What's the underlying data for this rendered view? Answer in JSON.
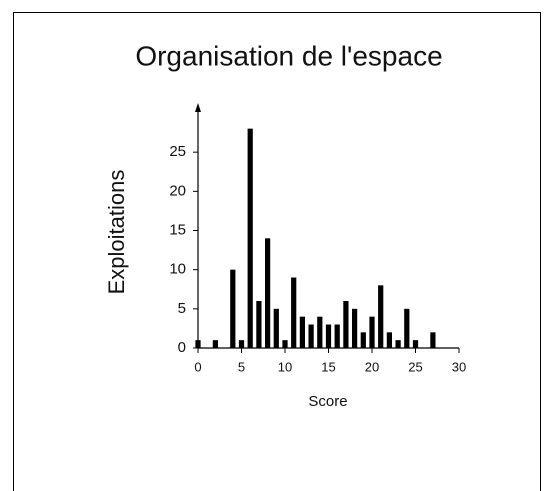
{
  "chart_data": {
    "type": "bar",
    "title": "Organisation de l'espace",
    "x_label": "Score",
    "y_label": "Exploitations",
    "x": [
      0,
      2,
      4,
      5,
      6,
      7,
      8,
      9,
      10,
      11,
      12,
      13,
      14,
      15,
      16,
      17,
      18,
      19,
      20,
      21,
      22,
      23,
      24,
      25,
      27
    ],
    "values": [
      1,
      1,
      10,
      1,
      28,
      6,
      14,
      5,
      1,
      9,
      4,
      3,
      4,
      3,
      3,
      6,
      5,
      2,
      4,
      8,
      2,
      1,
      5,
      1,
      2
    ],
    "color": "#000000",
    "xlim": [
      0,
      30
    ],
    "xticks": [
      0,
      5,
      10,
      15,
      20,
      25,
      30
    ],
    "ylim": [
      0,
      30
    ],
    "yticks": [
      0,
      5,
      10,
      15,
      20,
      25
    ]
  }
}
